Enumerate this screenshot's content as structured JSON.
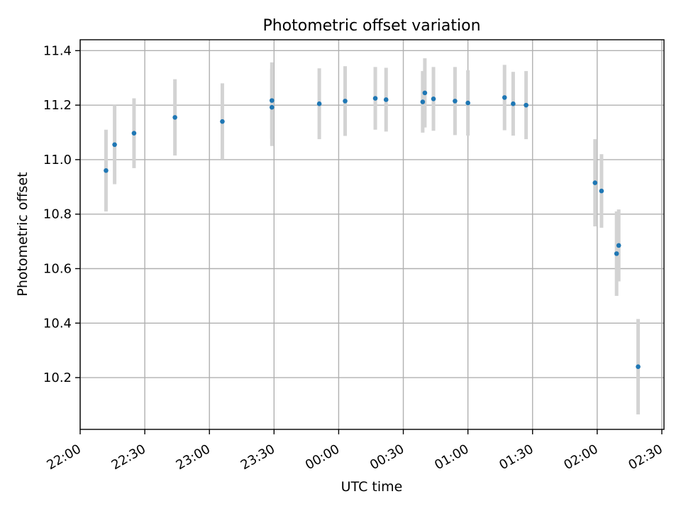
{
  "chart_data": {
    "type": "scatter",
    "title": "Photometric offset variation",
    "xlabel": "UTC time",
    "ylabel": "Photometric offset",
    "x_ticks": [
      "22:00",
      "22:30",
      "23:00",
      "23:30",
      "00:00",
      "00:30",
      "01:00",
      "01:30",
      "02:00",
      "02:30"
    ],
    "y_ticks": [
      10.2,
      10.4,
      10.6,
      10.8,
      11.0,
      11.2,
      11.4
    ],
    "xlim": [
      "22:00",
      "02:31"
    ],
    "ylim": [
      10.01,
      11.44
    ],
    "grid": true,
    "point_color": "#1f77b4",
    "errorbar_color": "#d3d3d3",
    "points": [
      {
        "t": "22:12",
        "y": 10.96,
        "err": 0.15
      },
      {
        "t": "22:16",
        "y": 11.055,
        "err": 0.145
      },
      {
        "t": "22:25",
        "y": 11.097,
        "err": 0.128
      },
      {
        "t": "22:44",
        "y": 11.155,
        "err": 0.14
      },
      {
        "t": "23:06",
        "y": 11.14,
        "err": 0.14
      },
      {
        "t": "23:29",
        "y": 11.217,
        "err": 0.14
      },
      {
        "t": "23:29",
        "y": 11.192,
        "err": 0.142
      },
      {
        "t": "23:51",
        "y": 11.205,
        "err": 0.13
      },
      {
        "t": "00:03",
        "y": 11.215,
        "err": 0.128
      },
      {
        "t": "00:17",
        "y": 11.225,
        "err": 0.115
      },
      {
        "t": "00:22",
        "y": 11.22,
        "err": 0.117
      },
      {
        "t": "00:39",
        "y": 11.212,
        "err": 0.113
      },
      {
        "t": "00:40",
        "y": 11.245,
        "err": 0.127
      },
      {
        "t": "00:44",
        "y": 11.223,
        "err": 0.117
      },
      {
        "t": "00:54",
        "y": 11.215,
        "err": 0.125
      },
      {
        "t": "01:00",
        "y": 11.208,
        "err": 0.12
      },
      {
        "t": "01:17",
        "y": 11.228,
        "err": 0.12
      },
      {
        "t": "01:21",
        "y": 11.205,
        "err": 0.117
      },
      {
        "t": "01:27",
        "y": 11.2,
        "err": 0.125
      },
      {
        "t": "01:59",
        "y": 10.915,
        "err": 0.16
      },
      {
        "t": "02:02",
        "y": 10.885,
        "err": 0.135
      },
      {
        "t": "02:09",
        "y": 10.655,
        "err": 0.155
      },
      {
        "t": "02:10",
        "y": 10.685,
        "err": 0.132
      },
      {
        "t": "02:19",
        "y": 10.24,
        "err": 0.175
      }
    ]
  }
}
